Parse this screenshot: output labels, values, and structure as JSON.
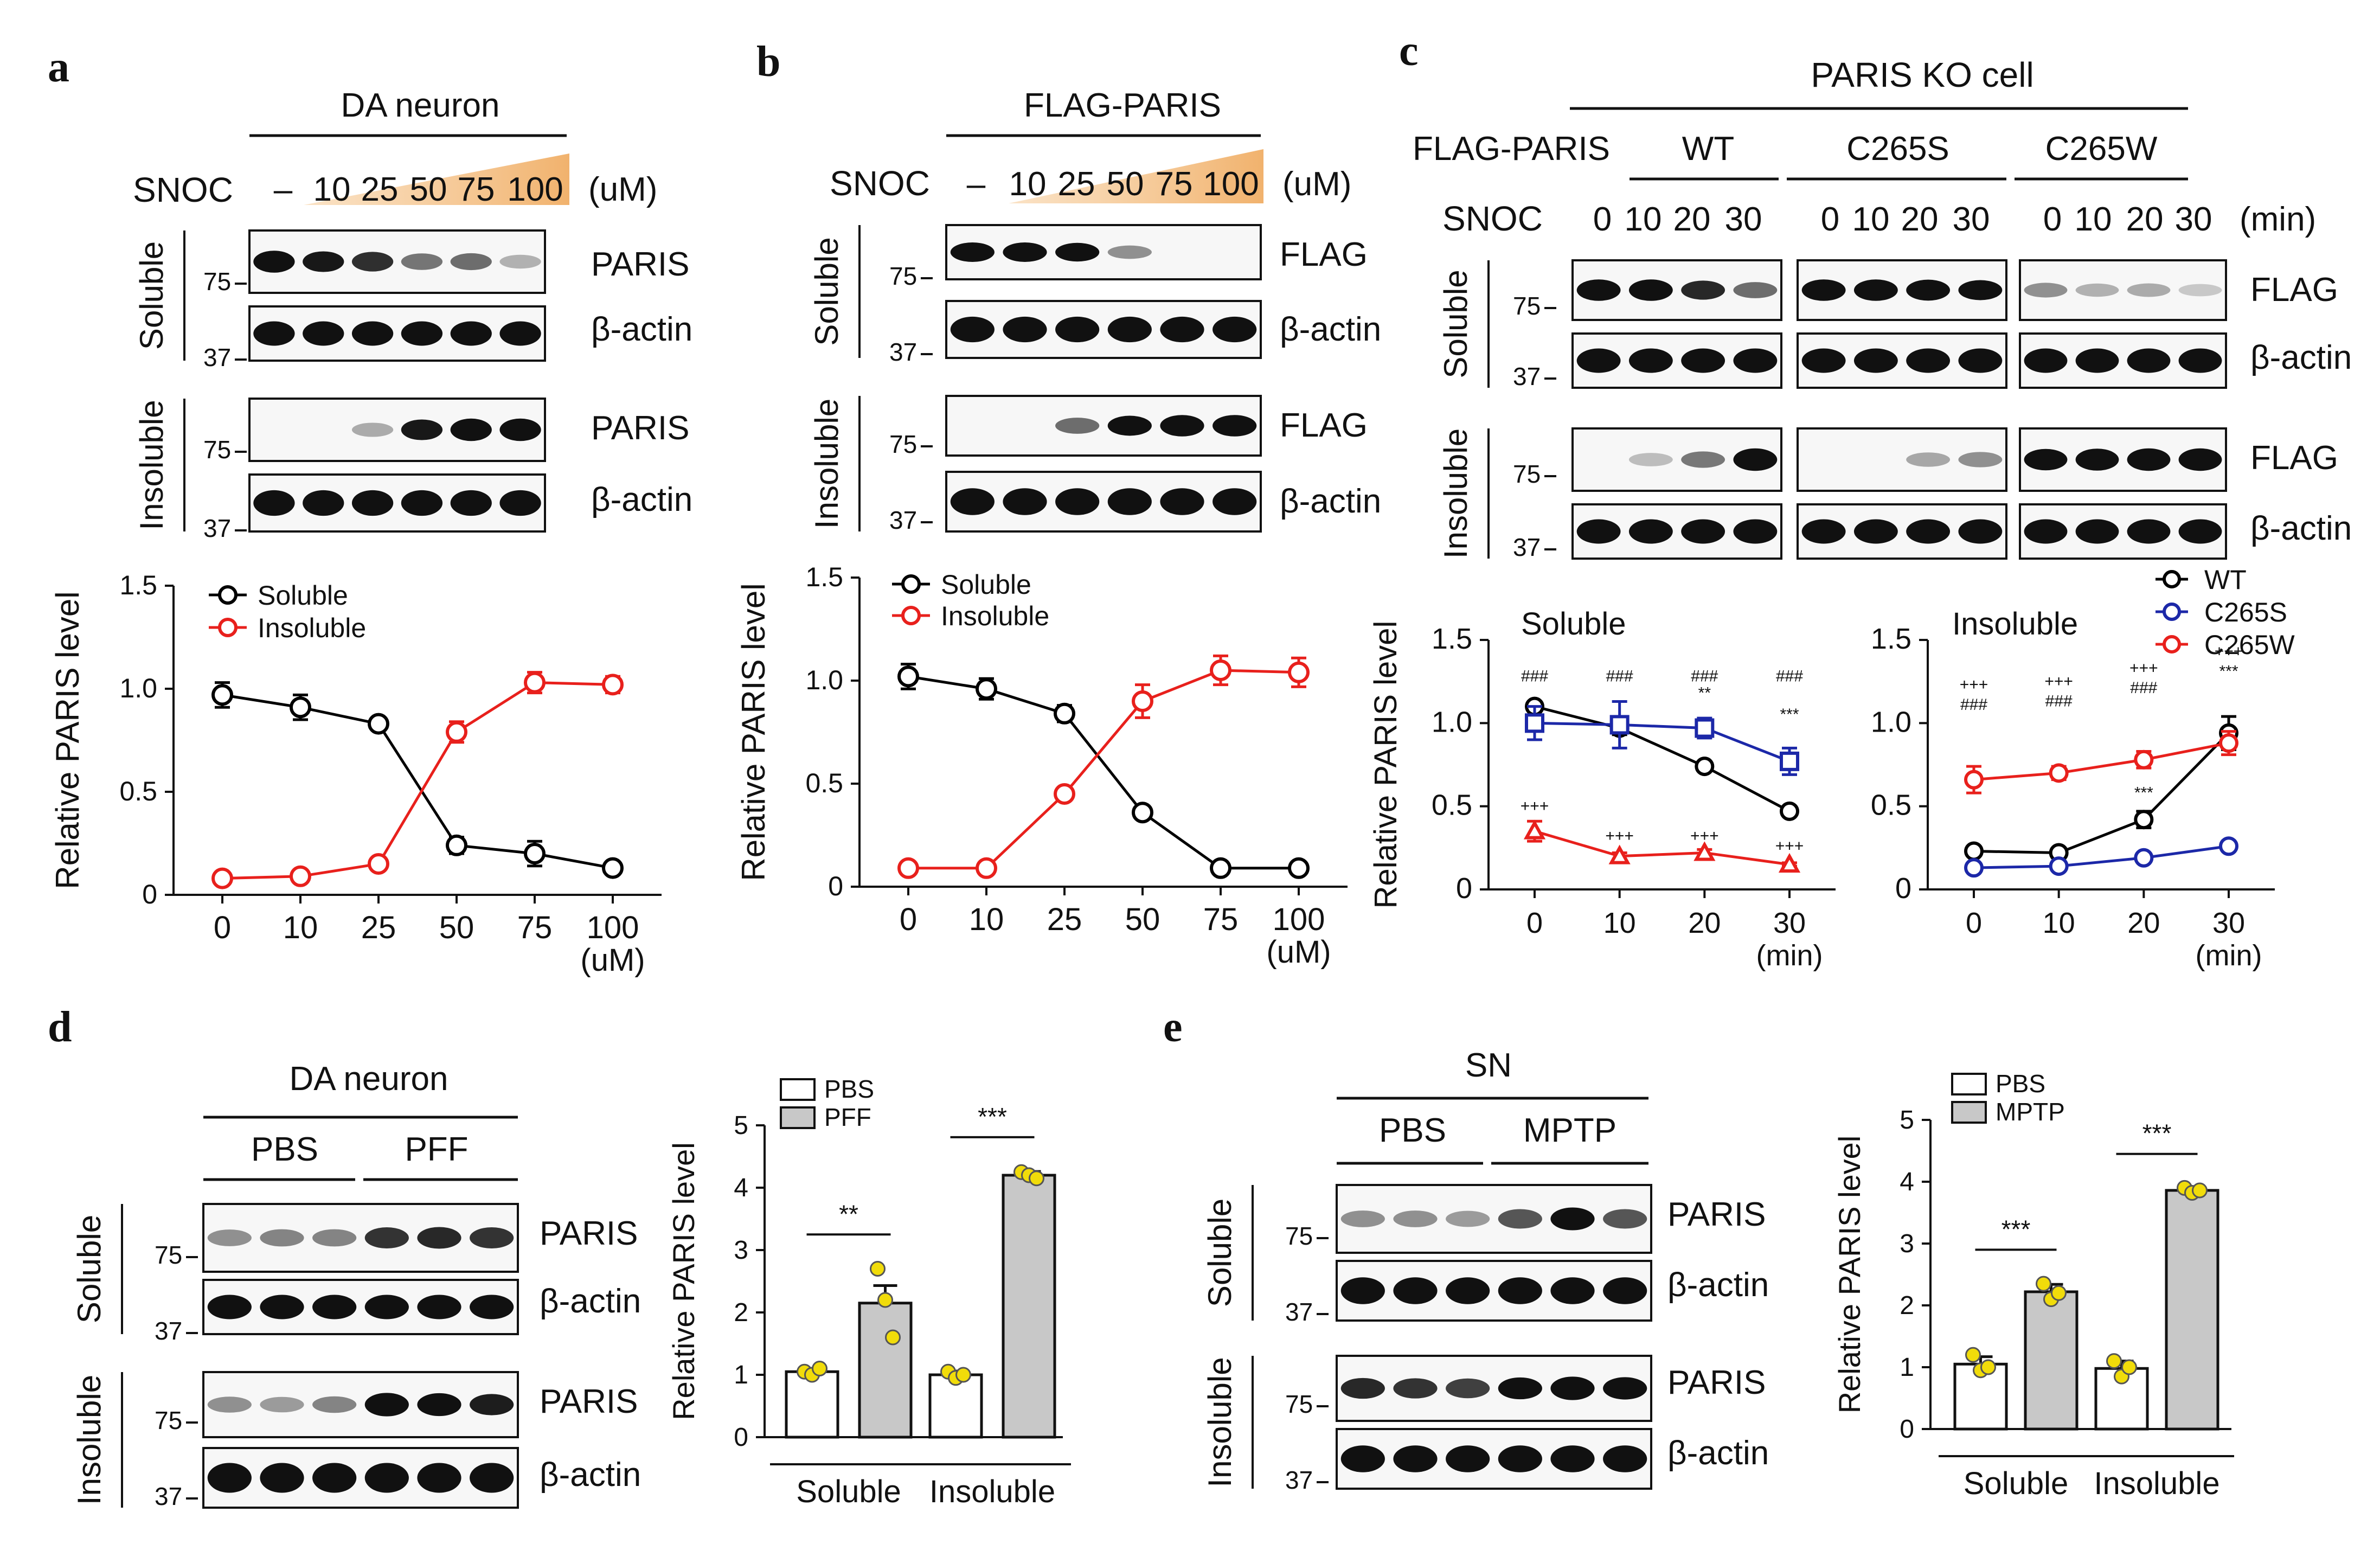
{
  "panels": {
    "a": {
      "letter": "a",
      "title": "DA neuron",
      "treatment": "SNOC",
      "unit": "(uM)",
      "lanes": [
        "–",
        "10",
        "25",
        "50",
        "75",
        "100"
      ],
      "blots": [
        "PARIS",
        "β-actin",
        "PARIS",
        "β-actin"
      ],
      "fractions": [
        "Soluble",
        "Insoluble"
      ],
      "mw": [
        "75",
        "37",
        "75",
        "37"
      ]
    },
    "b": {
      "letter": "b",
      "title": "FLAG-PARIS",
      "treatment": "SNOC",
      "unit": "(uM)",
      "lanes": [
        "–",
        "10",
        "25",
        "50",
        "75",
        "100"
      ],
      "blots": [
        "FLAG",
        "β-actin",
        "FLAG",
        "β-actin"
      ],
      "fractions": [
        "Soluble",
        "Insoluble"
      ],
      "mw": [
        "75",
        "37",
        "75",
        "37"
      ]
    },
    "c": {
      "letter": "c",
      "title": "PARIS KO cell",
      "construct_label": "FLAG-PARIS",
      "groups": [
        "WT",
        "C265S",
        "C265W"
      ],
      "treatment": "SNOC",
      "unit": "(min)",
      "lanes": [
        "0",
        "10",
        "20",
        "30"
      ],
      "blots": [
        "FLAG",
        "β-actin",
        "FLAG",
        "β-actin"
      ],
      "fractions": [
        "Soluble",
        "Insoluble"
      ],
      "mw": [
        "75",
        "37",
        "75",
        "37"
      ],
      "sig": {
        "triple_hash": "###",
        "double_star": "**",
        "triple_star": "***",
        "triple_plus": "+++"
      }
    },
    "d": {
      "letter": "d",
      "title": "DA neuron",
      "groups": [
        "PBS",
        "PFF"
      ],
      "blots": [
        "PARIS",
        "β-actin",
        "PARIS",
        "β-actin"
      ],
      "fractions": [
        "Soluble",
        "Insoluble"
      ],
      "mw": [
        "75",
        "37",
        "75",
        "37"
      ]
    },
    "e": {
      "letter": "e",
      "title": "SN",
      "groups": [
        "PBS",
        "MPTP"
      ],
      "blots": [
        "PARIS",
        "β-actin",
        "PARIS",
        "β-actin"
      ],
      "fractions": [
        "Soluble",
        "Insoluble"
      ],
      "mw": [
        "75",
        "37",
        "75",
        "37"
      ]
    }
  },
  "chart_data": [
    {
      "id": "a",
      "type": "line",
      "x": [
        0,
        10,
        25,
        50,
        75,
        100
      ],
      "xticks": [
        "0",
        "10",
        "25",
        "50",
        "75",
        "100"
      ],
      "xunit": "(uM)",
      "ylabel": "Relative PARIS level",
      "ylim": [
        0,
        1.5
      ],
      "yticks": [
        "0",
        "0.5",
        "1.0",
        "1.5"
      ],
      "series": [
        {
          "name": "Soluble",
          "color": "#000000",
          "marker": "circle",
          "values": [
            0.97,
            0.91,
            0.83,
            0.24,
            0.2,
            0.13
          ],
          "err": [
            0.06,
            0.06,
            0.02,
            0.04,
            0.06,
            0.02
          ]
        },
        {
          "name": "Insoluble",
          "color": "#e8201c",
          "marker": "circle",
          "values": [
            0.08,
            0.09,
            0.15,
            0.79,
            1.03,
            1.02
          ],
          "err": [
            0.01,
            0.01,
            0.02,
            0.05,
            0.05,
            0.04
          ]
        }
      ]
    },
    {
      "id": "b",
      "type": "line",
      "x": [
        0,
        10,
        25,
        50,
        75,
        100
      ],
      "xticks": [
        "0",
        "10",
        "25",
        "50",
        "75",
        "100"
      ],
      "xunit": "(uM)",
      "ylabel": "Relative PARIS level",
      "ylim": [
        0,
        1.5
      ],
      "yticks": [
        "0",
        "0.5",
        "1.0",
        "1.5"
      ],
      "series": [
        {
          "name": "Soluble",
          "color": "#000000",
          "marker": "circle",
          "values": [
            1.02,
            0.96,
            0.84,
            0.36,
            0.09,
            0.09
          ],
          "err": [
            0.06,
            0.05,
            0.04,
            0.02,
            0.01,
            0.01
          ]
        },
        {
          "name": "Insoluble",
          "color": "#e8201c",
          "marker": "circle",
          "values": [
            0.09,
            0.09,
            0.45,
            0.9,
            1.05,
            1.04
          ],
          "err": [
            0.01,
            0.01,
            0.02,
            0.08,
            0.07,
            0.07
          ]
        }
      ]
    },
    {
      "id": "c-soluble",
      "type": "line",
      "title": "Soluble",
      "x": [
        0,
        10,
        20,
        30
      ],
      "xticks": [
        "0",
        "10",
        "20",
        "30"
      ],
      "xunit": "(min)",
      "ylabel": "Relative PARIS level",
      "ylim": [
        0,
        1.5
      ],
      "yticks": [
        "0",
        "0.5",
        "1.0",
        "1.5"
      ],
      "series": [
        {
          "name": "WT",
          "color": "#000000",
          "marker": "circle",
          "values": [
            1.1,
            0.97,
            0.74,
            0.47
          ],
          "err": [
            0.03,
            0.04,
            0.02,
            0.02
          ]
        },
        {
          "name": "C265S",
          "color": "#1c28a8",
          "marker": "square",
          "values": [
            1.0,
            0.99,
            0.97,
            0.77
          ],
          "err": [
            0.1,
            0.14,
            0.06,
            0.08
          ]
        },
        {
          "name": "C265W",
          "color": "#e8201c",
          "marker": "triangle",
          "values": [
            0.35,
            0.2,
            0.22,
            0.15
          ],
          "err": [
            0.06,
            0.02,
            0.02,
            0.01
          ]
        }
      ]
    },
    {
      "id": "c-insoluble",
      "type": "line",
      "title": "Insoluble",
      "x": [
        0,
        10,
        20,
        30
      ],
      "xticks": [
        "0",
        "10",
        "20",
        "30"
      ],
      "xunit": "(min)",
      "ylim": [
        0,
        1.5
      ],
      "yticks": [
        "0",
        "0.5",
        "1.0",
        "1.5"
      ],
      "legend": [
        "WT",
        "C265S",
        "C265W"
      ],
      "series": [
        {
          "name": "WT",
          "color": "#000000",
          "marker": "circle",
          "values": [
            0.23,
            0.22,
            0.42,
            0.94
          ],
          "err": [
            0.01,
            0.02,
            0.05,
            0.1
          ]
        },
        {
          "name": "C265S",
          "color": "#1c28a8",
          "marker": "circle",
          "values": [
            0.13,
            0.14,
            0.19,
            0.26
          ],
          "err": [
            0.01,
            0.01,
            0.01,
            0.03
          ]
        },
        {
          "name": "C265W",
          "color": "#e8201c",
          "marker": "circle",
          "values": [
            0.66,
            0.7,
            0.78,
            0.88
          ],
          "err": [
            0.08,
            0.04,
            0.05,
            0.07
          ]
        }
      ]
    },
    {
      "id": "d",
      "type": "bar",
      "groups": [
        "Soluble",
        "Insoluble"
      ],
      "series_names": [
        "PBS",
        "PFF"
      ],
      "values": [
        [
          1.05,
          2.15
        ],
        [
          1.0,
          4.2
        ]
      ],
      "err": [
        [
          0.05,
          0.28
        ],
        [
          0.06,
          0.06
        ]
      ],
      "points": [
        [
          [
            1.05,
            1.0,
            1.1
          ],
          [
            2.7,
            2.2,
            1.6
          ]
        ],
        [
          [
            1.05,
            0.95,
            1.0
          ],
          [
            4.25,
            4.2,
            4.15
          ]
        ]
      ],
      "ylabel": "Relative PARIS level",
      "ylim": [
        0,
        5
      ],
      "yticks": [
        "0",
        "1",
        "2",
        "3",
        "4",
        "5"
      ],
      "sig": [
        "**",
        "***"
      ]
    },
    {
      "id": "e",
      "type": "bar",
      "groups": [
        "Soluble",
        "Insoluble"
      ],
      "series_names": [
        "PBS",
        "MPTP"
      ],
      "values": [
        [
          1.05,
          2.22
        ],
        [
          0.98,
          3.86
        ]
      ],
      "err": [
        [
          0.12,
          0.12
        ],
        [
          0.12,
          0.04
        ]
      ],
      "points": [
        [
          [
            1.2,
            0.95,
            1.0
          ],
          [
            2.35,
            2.1,
            2.2
          ]
        ],
        [
          [
            1.1,
            0.85,
            1.0
          ],
          [
            3.9,
            3.82,
            3.86
          ]
        ]
      ],
      "ylabel": "Relative PARIS level",
      "ylim": [
        0,
        5
      ],
      "yticks": [
        "0",
        "1",
        "2",
        "3",
        "4",
        "5"
      ],
      "sig": [
        "***",
        "***"
      ]
    }
  ]
}
